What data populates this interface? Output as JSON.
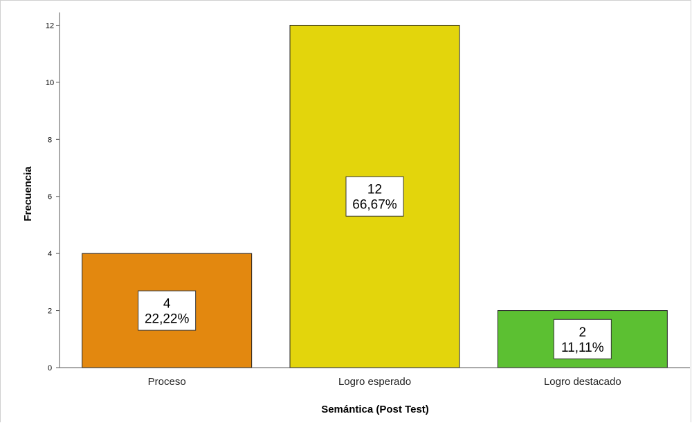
{
  "chart_data": {
    "type": "bar",
    "categories": [
      "Proceso",
      "Logro esperado",
      "Logro destacado"
    ],
    "values": [
      4,
      12,
      2
    ],
    "percent_labels": [
      "22,22%",
      "66,67%",
      "11,11%"
    ],
    "count_labels": [
      "4",
      "12",
      "2"
    ],
    "colors": [
      "#e3880f",
      "#e3d50c",
      "#5cc032"
    ],
    "xlabel": "Semántica (Post Test)",
    "ylabel": "Frecuencia",
    "ylim": [
      0,
      12.4
    ],
    "yticks": [
      0,
      2,
      4,
      6,
      8,
      10,
      12
    ],
    "grid": false,
    "legend": "none"
  }
}
